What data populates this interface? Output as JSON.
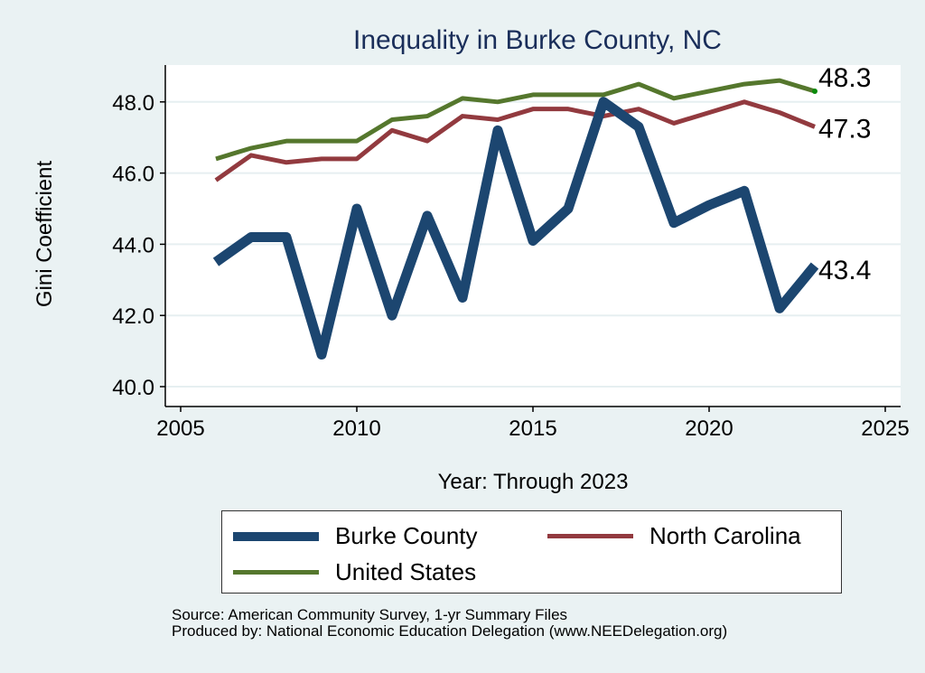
{
  "chart_data": {
    "type": "line",
    "title": "Inequality in Burke County, NC",
    "xlabel": "Year: Through 2023",
    "ylabel": "Gini Coefficient",
    "xlim": [
      2005,
      2025
    ],
    "ylim": [
      40,
      49
    ],
    "xticks": [
      "2005",
      "2010",
      "2015",
      "2020",
      "2025"
    ],
    "yticks": [
      "40.0",
      "42.0",
      "44.0",
      "46.0",
      "48.0"
    ],
    "grid": true,
    "legend_position": "bottom",
    "x": [
      2006,
      2007,
      2008,
      2009,
      2010,
      2011,
      2012,
      2013,
      2014,
      2015,
      2016,
      2017,
      2018,
      2019,
      2020,
      2021,
      2022,
      2023
    ],
    "series": [
      {
        "name": "Burke County",
        "color": "#1c4670",
        "values": [
          43.5,
          44.2,
          44.2,
          40.9,
          45.0,
          42.0,
          44.8,
          42.5,
          47.2,
          44.1,
          45.0,
          48.0,
          47.3,
          44.6,
          45.1,
          45.5,
          42.2,
          43.4
        ],
        "end_label": "43.4"
      },
      {
        "name": "North Carolina",
        "color": "#923a3f",
        "values": [
          45.8,
          46.5,
          46.3,
          46.4,
          46.4,
          47.2,
          46.9,
          47.6,
          47.5,
          47.8,
          47.8,
          47.6,
          47.8,
          47.4,
          47.7,
          48.0,
          47.7,
          47.3
        ],
        "end_label": "47.3"
      },
      {
        "name": "United States",
        "color": "#55772d",
        "values": [
          46.4,
          46.7,
          46.9,
          46.9,
          46.9,
          47.5,
          47.6,
          48.1,
          48.0,
          48.2,
          48.2,
          48.2,
          48.5,
          48.1,
          48.3,
          48.5,
          48.6,
          48.3
        ],
        "end_label": "48.3"
      }
    ]
  },
  "source": {
    "line1": "Source: American Community Survey, 1-yr Summary Files",
    "line2": "Produced by: National Economic Education Delegation (www.NEEDelegation.org)"
  }
}
